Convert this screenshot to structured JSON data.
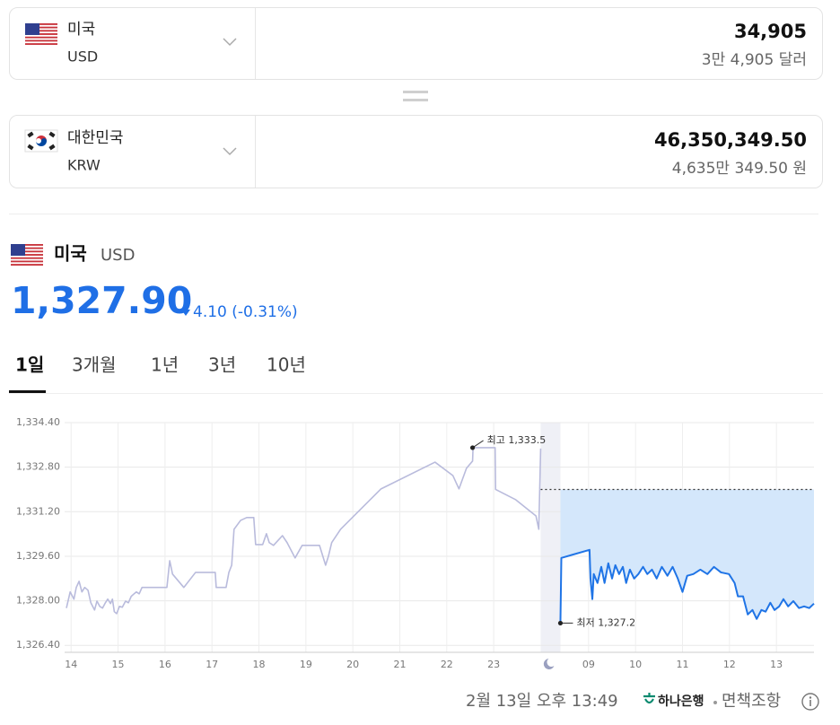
{
  "converter": {
    "from": {
      "country": "미국",
      "code": "USD",
      "amount": "34,905",
      "amount_words": "3만 4,905 달러"
    },
    "to": {
      "country": "대한민국",
      "code": "KRW",
      "amount": "46,350,349.50",
      "amount_words": "4,635만 349.50 원"
    }
  },
  "rate": {
    "country": "미국",
    "code": "USD",
    "value": "1,327.90",
    "change": "4.10 (-0.31%)"
  },
  "tabs": [
    "1일",
    "3개월",
    "1년",
    "3년",
    "10년"
  ],
  "active_tab": 0,
  "footer": {
    "timestamp": "2월 13일 오후 13:49",
    "provider": "하나은행",
    "disclaimer": "면책조항"
  },
  "chart_data": {
    "type": "line",
    "ylim": [
      1326.15,
      1334.4
    ],
    "yticks": [
      {
        "value": 1326.4,
        "label": "1,326.40"
      },
      {
        "value": 1328.0,
        "label": "1,328.00"
      },
      {
        "value": 1329.6,
        "label": "1,329.60"
      },
      {
        "value": 1331.2,
        "label": "1,331.20"
      },
      {
        "value": 1332.8,
        "label": "1,332.80"
      },
      {
        "value": 1334.4,
        "label": "1,334.40"
      }
    ],
    "xlim": [
      13.9,
      37.8
    ],
    "x_break": [
      24,
      32.4
    ],
    "xticks": [
      14,
      15,
      16,
      17,
      18,
      19,
      20,
      21,
      22,
      23,
      {
        "value": 33,
        "label": "09"
      },
      {
        "value": 34,
        "label": "10"
      },
      {
        "value": 35,
        "label": "11"
      },
      {
        "value": 36,
        "label": "12"
      },
      {
        "value": 37,
        "label": "13"
      }
    ],
    "grid": true,
    "reference_line": 1332.0,
    "series": [
      {
        "color": "#b9bbdc",
        "x": [
          13.9,
          13.98,
          14.06,
          14.11,
          14.17,
          14.23,
          14.29,
          14.36,
          14.42,
          14.5,
          14.55,
          14.61,
          14.67,
          14.73,
          14.78,
          14.84,
          14.88,
          14.92,
          14.97,
          15.03,
          15.09,
          15.16,
          15.22,
          15.28,
          15.34,
          15.39,
          15.45,
          15.51,
          16.04,
          16.1,
          16.16,
          16.4,
          16.65,
          17.07,
          17.09,
          17.3,
          17.36,
          17.42,
          17.47,
          17.61,
          17.74,
          17.89,
          17.93,
          18.08,
          18.16,
          18.22,
          18.31,
          18.5,
          18.6,
          18.77,
          18.92,
          19.29,
          19.42,
          19.48,
          19.55,
          19.74,
          20.6,
          21.75,
          22.13,
          22.26,
          22.42,
          22.55,
          22.56,
          23.03,
          23.04,
          23.47,
          23.9,
          23.96,
          24.0
        ],
        "values": [
          1327.74,
          1328.32,
          1328.06,
          1328.48,
          1328.7,
          1328.32,
          1328.48,
          1328.38,
          1327.93,
          1327.67,
          1327.99,
          1327.8,
          1327.74,
          1327.93,
          1328.06,
          1327.9,
          1328.06,
          1327.61,
          1327.54,
          1327.8,
          1327.77,
          1327.99,
          1327.93,
          1328.16,
          1328.25,
          1328.32,
          1328.25,
          1328.48,
          1328.48,
          1329.44,
          1328.96,
          1328.48,
          1329.02,
          1329.02,
          1328.48,
          1328.48,
          1329.02,
          1329.28,
          1330.57,
          1330.89,
          1330.99,
          1330.99,
          1330.02,
          1330.02,
          1330.41,
          1330.09,
          1329.99,
          1330.34,
          1330.09,
          1329.54,
          1329.99,
          1329.99,
          1329.28,
          1329.6,
          1330.09,
          1330.57,
          1332.02,
          1332.98,
          1332.5,
          1332.02,
          1332.76,
          1333.02,
          1333.5,
          1333.5,
          1332.0,
          1331.63,
          1331.05,
          1330.57,
          1333.47
        ]
      },
      {
        "color": "#1f74e6",
        "fill": "#d4e7fb",
        "x": [
          32.4,
          32.42,
          33.02,
          33.04,
          33.08,
          33.11,
          33.19,
          33.27,
          33.34,
          33.42,
          33.5,
          33.57,
          33.65,
          33.73,
          33.8,
          33.88,
          33.97,
          34.06,
          34.16,
          34.25,
          34.35,
          34.45,
          34.56,
          34.68,
          34.79,
          34.9,
          35.0,
          35.1,
          35.23,
          35.38,
          35.53,
          35.67,
          35.82,
          35.99,
          36.11,
          36.18,
          36.29,
          36.39,
          36.49,
          36.58,
          36.68,
          36.77,
          36.87,
          36.96,
          37.06,
          37.15,
          37.25,
          37.36,
          37.48,
          37.59,
          37.7,
          37.8
        ],
        "values": [
          1327.2,
          1329.54,
          1329.83,
          1328.8,
          1328.06,
          1328.96,
          1328.64,
          1329.22,
          1328.64,
          1329.35,
          1328.8,
          1329.28,
          1328.96,
          1329.22,
          1328.64,
          1329.12,
          1328.8,
          1328.96,
          1329.22,
          1328.96,
          1329.12,
          1328.8,
          1329.22,
          1328.9,
          1329.22,
          1328.8,
          1328.32,
          1328.9,
          1328.96,
          1329.12,
          1328.96,
          1329.22,
          1329.02,
          1328.96,
          1328.64,
          1328.16,
          1328.16,
          1327.51,
          1327.67,
          1327.35,
          1327.67,
          1327.61,
          1327.93,
          1327.67,
          1327.8,
          1328.06,
          1327.8,
          1327.99,
          1327.74,
          1327.8,
          1327.74,
          1327.9
        ]
      }
    ],
    "annotations": [
      {
        "label": "최고 1,333.5",
        "x": 22.55,
        "y": 1333.5
      },
      {
        "label": "최저 1,327.2",
        "x": 32.4,
        "y": 1327.2
      }
    ]
  }
}
